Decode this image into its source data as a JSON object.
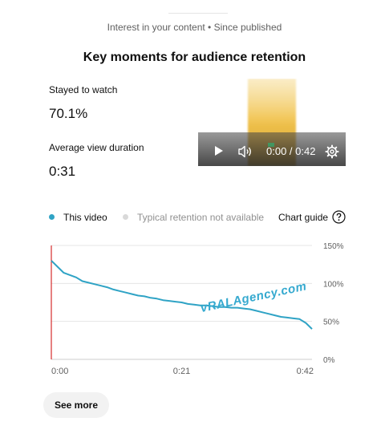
{
  "header": {
    "subtitle": "Interest in your content • Since published",
    "title": "Key moments for audience retention"
  },
  "metrics": {
    "stayed_label": "Stayed to watch",
    "stayed_value": "70.1%",
    "avg_label": "Average view duration",
    "avg_value": "0:31"
  },
  "player": {
    "time": "0:00 / 0:42",
    "icons": [
      "play-icon",
      "volume-icon",
      "gear-icon"
    ]
  },
  "legend": {
    "this_video": "This video",
    "typical": "Typical retention not available",
    "chart_guide": "Chart guide",
    "colors": {
      "this_video": "#2fa3c5",
      "typical": "#d9d9d9"
    }
  },
  "watermark": "vRALAgency.com",
  "buttons": {
    "see_more": "See more"
  },
  "chart_data": {
    "type": "line",
    "series": [
      {
        "name": "This video",
        "color": "#2fa3c5",
        "x": [
          0,
          1,
          2,
          3,
          4,
          5,
          6,
          7,
          8,
          9,
          10,
          11,
          12,
          13,
          14,
          15,
          16,
          17,
          18,
          19,
          20,
          21,
          22,
          23,
          24,
          25,
          26,
          27,
          28,
          29,
          30,
          31,
          32,
          33,
          34,
          35,
          36,
          37,
          38,
          39,
          40,
          41,
          42
        ],
        "values": [
          130,
          122,
          114,
          111,
          108,
          103,
          101,
          99,
          97,
          95,
          92,
          90,
          88,
          86,
          84,
          83,
          81,
          80,
          78,
          77,
          76,
          75,
          73,
          72,
          71,
          71,
          70,
          69,
          69,
          68,
          68,
          67,
          66,
          64,
          62,
          60,
          58,
          56,
          55,
          54,
          53,
          48,
          40
        ]
      }
    ],
    "xlim": [
      0,
      42
    ],
    "ylim": [
      0,
      150
    ],
    "xticks": [
      "0:00",
      "0:21",
      "0:42"
    ],
    "yticks": [
      "0%",
      "50%",
      "100%",
      "150%"
    ],
    "grid": true,
    "legend": "top"
  }
}
